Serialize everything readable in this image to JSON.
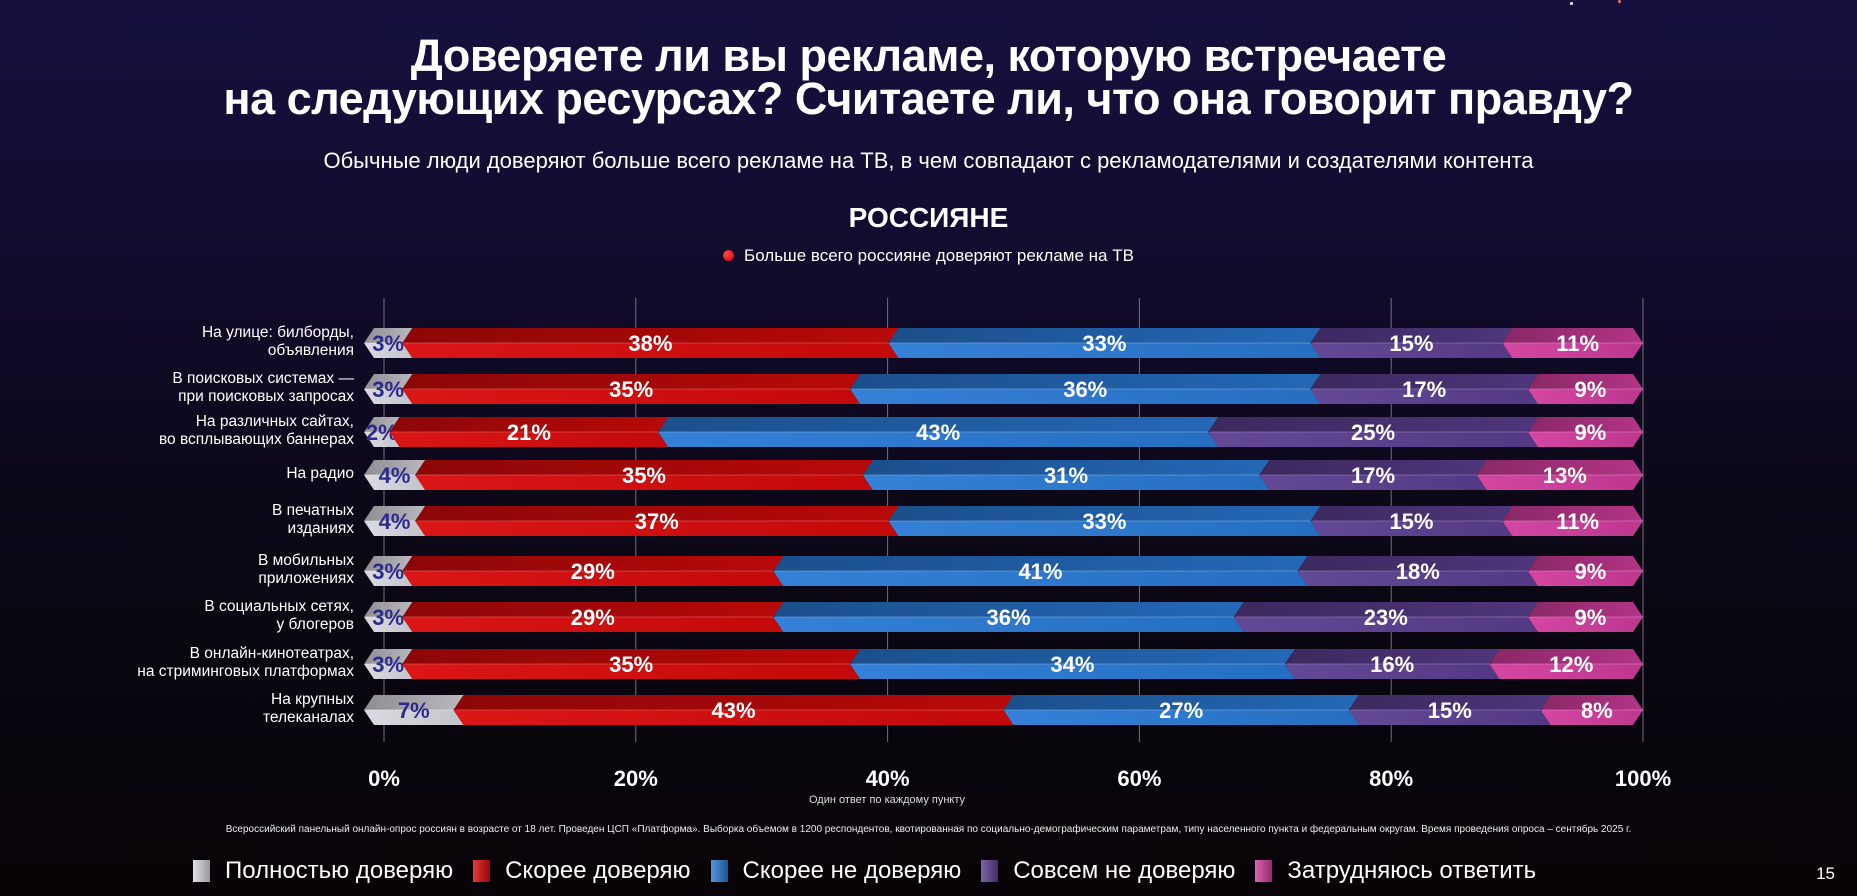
{
  "header": {
    "title_line1": "Доверяете ли вы рекламе, которую встречаете",
    "title_line2": "на следующих ресурсах? Считаете ли, что она говорит правду?",
    "subtitle": "Обычные люди доверяют больше всего рекламе на ТВ, в чем совпадают с рекламодателями и создателями контента",
    "group_title": "РОССИЯНЕ",
    "note": "Больше всего россияне доверяют рекламе на ТВ"
  },
  "chart_data": {
    "type": "bar",
    "orientation": "horizontal",
    "stacked": true,
    "categories": [
      [
        "На улице: билборды,",
        "объявления"
      ],
      [
        "В поисковых системах —",
        "при поисковых запросах"
      ],
      [
        "На различных сайтах,",
        "во всплывающих баннерах"
      ],
      [
        "На радио"
      ],
      [
        "В печатных",
        "изданиях"
      ],
      [
        "В мобильных",
        "приложениях"
      ],
      [
        "В социальных сетях,",
        "у блогеров"
      ],
      [
        "В онлайн-кинотеатрах,",
        "на стриминговых платформах"
      ],
      [
        "На крупных",
        "телеканалах"
      ]
    ],
    "series": [
      {
        "name": "Полностью доверяю",
        "color": "#d9d9e0",
        "label_color": "#2e2a8c",
        "values": [
          3,
          3,
          2,
          4,
          4,
          3,
          3,
          3,
          7
        ]
      },
      {
        "name": "Скорее доверяю",
        "color": "#d90a0a",
        "label_color": "#ffffff",
        "values": [
          38,
          35,
          21,
          35,
          37,
          29,
          29,
          35,
          43
        ]
      },
      {
        "name": "Скорее не доверяю",
        "color": "#2a7ad6",
        "label_color": "#ffffff",
        "values": [
          33,
          36,
          43,
          31,
          33,
          41,
          36,
          34,
          27
        ]
      },
      {
        "name": "Совсем не доверяю",
        "color": "#5c3f91",
        "label_color": "#ffffff",
        "values": [
          15,
          17,
          25,
          17,
          15,
          18,
          23,
          16,
          15
        ]
      },
      {
        "name": "Затрудняюсь ответить",
        "color": "#d23d9e",
        "label_color": "#ffffff",
        "values": [
          11,
          9,
          9,
          13,
          11,
          9,
          9,
          12,
          8
        ]
      }
    ],
    "xlim": [
      0,
      100
    ],
    "xticks": [
      "0%",
      "20%",
      "40%",
      "60%",
      "80%",
      "100%"
    ],
    "grid": true,
    "xlabel": "Один ответ по каждому пункту",
    "legend": "bottom"
  },
  "footnote": "Всероссийский панельный онлайн-опрос россиян в возрасте от 18 лет.  Проведен ЦСП «Платформа». Выборка объемом в 1200 респондентов, квотированная по социально-демографическим параметрам, типу населенного пункта и федеральным округам. Время проведения опроса – сентябрь 2025 г.",
  "page_number": "15"
}
